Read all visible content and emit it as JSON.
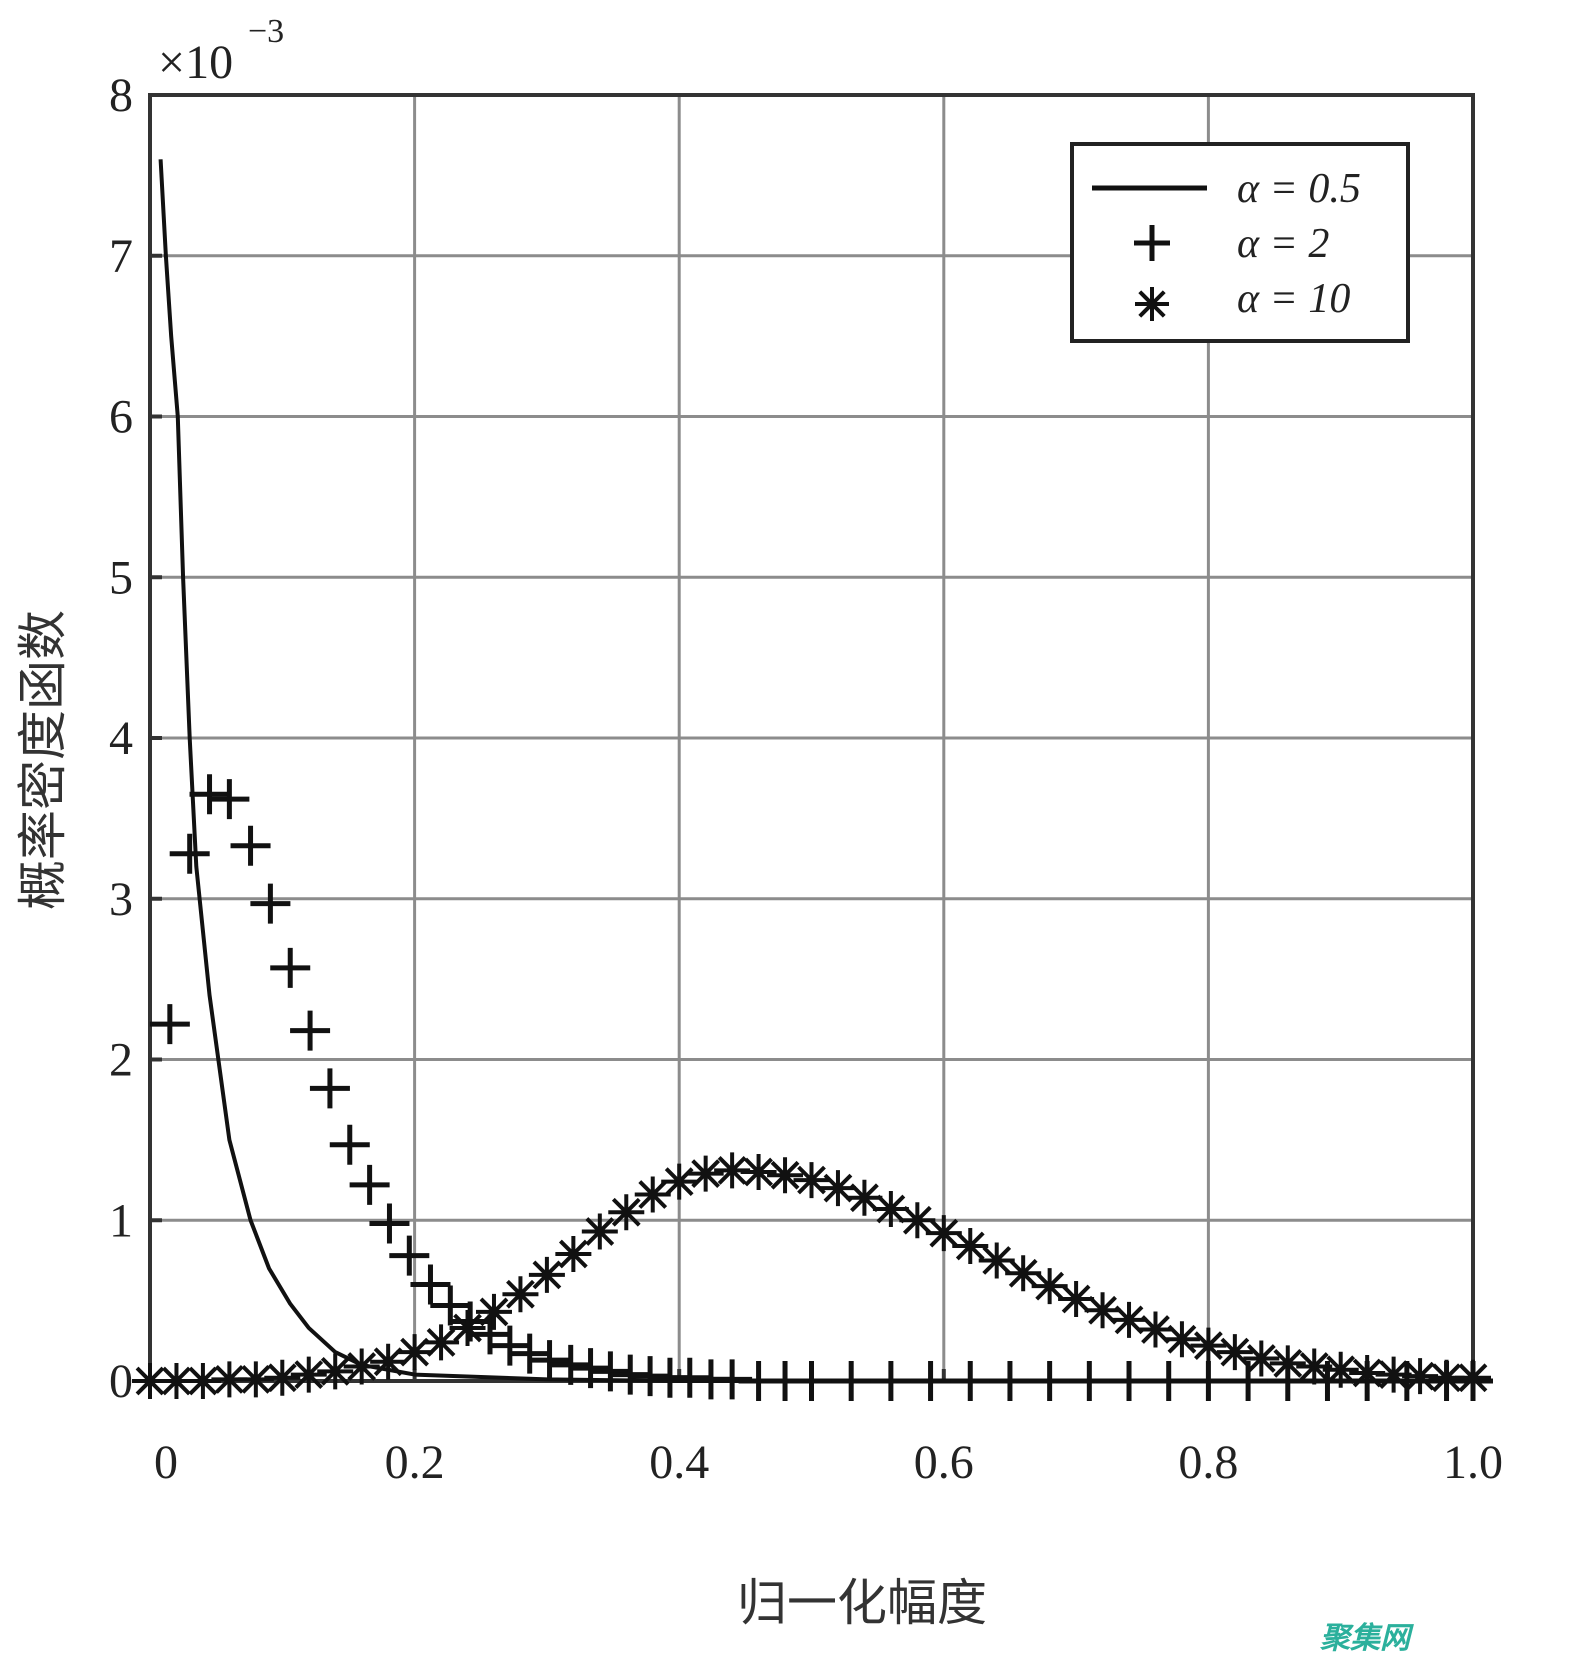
{
  "chart_data": {
    "type": "line",
    "title": "",
    "xlabel": "归一化幅度",
    "ylabel": "概率密度函数",
    "y_exponent": {
      "base": "×10",
      "power": "−3"
    },
    "xlim": [
      0,
      1.0
    ],
    "ylim": [
      0,
      8
    ],
    "grid": true,
    "xticks": [
      "0",
      "0.2",
      "0.4",
      "0.6",
      "0.8",
      "1.0"
    ],
    "xtick_values": [
      0,
      0.2,
      0.4,
      0.6,
      0.8,
      1.0
    ],
    "yticks": [
      "0",
      "1",
      "2",
      "3",
      "4",
      "5",
      "6",
      "7",
      "8"
    ],
    "ytick_values": [
      0,
      1,
      2,
      3,
      4,
      5,
      6,
      7,
      8
    ],
    "legend_position": "top-right",
    "series": [
      {
        "name": "α = 0.5",
        "style": "line",
        "x": [
          0.008,
          0.012,
          0.016,
          0.021,
          0.025,
          0.03,
          0.035,
          0.045,
          0.06,
          0.076,
          0.09,
          0.106,
          0.12,
          0.14,
          0.16,
          0.2,
          0.3,
          0.4,
          1.0
        ],
        "y": [
          7.6,
          7.0,
          6.5,
          6.0,
          5.0,
          4.0,
          3.2,
          2.4,
          1.5,
          1.0,
          0.7,
          0.48,
          0.33,
          0.18,
          0.1,
          0.04,
          0.01,
          0.0,
          0.0
        ]
      },
      {
        "name": "α = 2",
        "style": "plus",
        "x": [
          0.015,
          0.03,
          0.045,
          0.06,
          0.076,
          0.091,
          0.106,
          0.121,
          0.136,
          0.151,
          0.166,
          0.181,
          0.196,
          0.212,
          0.227,
          0.242,
          0.257,
          0.272,
          0.287,
          0.302,
          0.318,
          0.333,
          0.348,
          0.363,
          0.378,
          0.393,
          0.408,
          0.424,
          0.44,
          0.46,
          0.48,
          0.5,
          0.53,
          0.56,
          0.59,
          0.62,
          0.65,
          0.68,
          0.71,
          0.74,
          0.77,
          0.8,
          0.83,
          0.86,
          0.89,
          0.92,
          0.95,
          0.98,
          1.0
        ],
        "y": [
          2.22,
          3.28,
          3.65,
          3.62,
          3.33,
          2.97,
          2.57,
          2.18,
          1.82,
          1.47,
          1.22,
          0.98,
          0.78,
          0.6,
          0.47,
          0.37,
          0.29,
          0.22,
          0.17,
          0.13,
          0.1,
          0.08,
          0.06,
          0.04,
          0.03,
          0.02,
          0.02,
          0.01,
          0.01,
          0,
          0,
          0,
          0,
          0,
          0,
          0,
          0,
          0,
          0,
          0,
          0,
          0,
          0,
          0,
          0,
          0,
          0,
          0,
          0
        ]
      },
      {
        "name": "α = 10",
        "style": "asterisk",
        "x": [
          0,
          0.02,
          0.04,
          0.06,
          0.08,
          0.1,
          0.12,
          0.14,
          0.16,
          0.18,
          0.2,
          0.22,
          0.24,
          0.26,
          0.28,
          0.3,
          0.32,
          0.34,
          0.36,
          0.38,
          0.4,
          0.42,
          0.44,
          0.46,
          0.48,
          0.5,
          0.52,
          0.54,
          0.56,
          0.58,
          0.6,
          0.62,
          0.64,
          0.66,
          0.68,
          0.7,
          0.72,
          0.74,
          0.76,
          0.78,
          0.8,
          0.82,
          0.84,
          0.86,
          0.88,
          0.9,
          0.92,
          0.94,
          0.96,
          0.98,
          1.0
        ],
        "y": [
          0,
          0,
          0,
          0.01,
          0.01,
          0.02,
          0.04,
          0.06,
          0.09,
          0.12,
          0.18,
          0.24,
          0.33,
          0.43,
          0.54,
          0.66,
          0.79,
          0.93,
          1.05,
          1.16,
          1.24,
          1.29,
          1.31,
          1.3,
          1.28,
          1.25,
          1.2,
          1.14,
          1.07,
          1.0,
          0.92,
          0.84,
          0.75,
          0.67,
          0.59,
          0.51,
          0.44,
          0.38,
          0.32,
          0.26,
          0.22,
          0.18,
          0.14,
          0.11,
          0.09,
          0.07,
          0.05,
          0.04,
          0.03,
          0.02,
          0.02
        ]
      }
    ]
  },
  "watermark": "聚集网",
  "colors": {
    "series": "#111111",
    "grid": "#8c8c8c",
    "axis": "#333333",
    "watermark": "#2bb09c"
  }
}
